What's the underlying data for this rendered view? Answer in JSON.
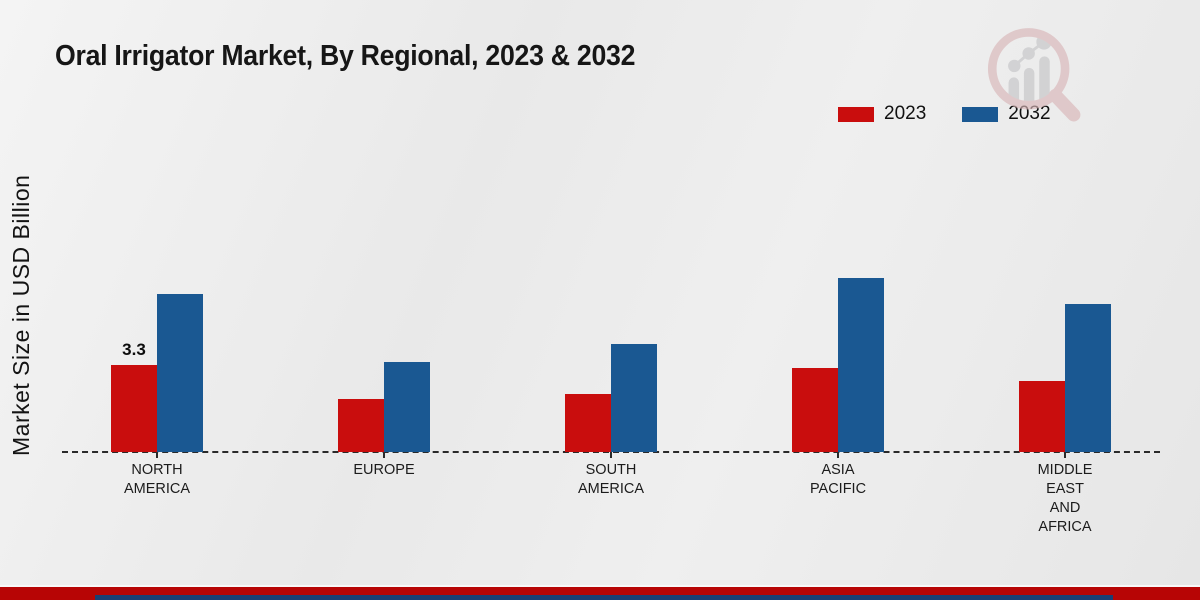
{
  "page": {
    "title": "Oral Irrigator Market, By Regional, 2023 & 2032",
    "y_axis_label": "Market Size in USD Billion"
  },
  "legend": {
    "items": [
      {
        "label": "2023",
        "color": "#c90d0d"
      },
      {
        "label": "2032",
        "color": "#1a5892"
      }
    ]
  },
  "colors": {
    "series_2023": "#c90d0d",
    "series_2032": "#1a5892",
    "footer_red_strip": "#b70505",
    "footer_navy_strip": "#1b3f73",
    "text": "#161616",
    "watermark_ring": "#d9b6b8",
    "watermark_gray": "#c5c5c7"
  },
  "watermark": {
    "name": "magnifier-bar-chart-logo"
  },
  "chart_data": {
    "type": "bar",
    "title": "Oral Irrigator Market, By Regional, 2023 & 2032",
    "ylabel": "Market Size in USD Billion",
    "unit": "USD Billion",
    "categories": [
      "NORTH AMERICA",
      "EUROPE",
      "SOUTH AMERICA",
      "ASIA PACIFIC",
      "MIDDLE EAST AND AFRICA"
    ],
    "category_label_lines": [
      [
        "NORTH",
        "AMERICA"
      ],
      [
        "EUROPE"
      ],
      [
        "SOUTH",
        "AMERICA"
      ],
      [
        "ASIA",
        "PACIFIC"
      ],
      [
        "MIDDLE",
        "EAST",
        "AND",
        "AFRICA"
      ]
    ],
    "series": [
      {
        "name": "2023",
        "color": "#c90d0d",
        "values": [
          3.3,
          2.0,
          2.2,
          3.2,
          2.7
        ],
        "data_labels": [
          "3.3",
          "",
          "",
          "",
          ""
        ]
      },
      {
        "name": "2032",
        "color": "#1a5892",
        "values": [
          6.0,
          3.4,
          4.1,
          6.6,
          5.6
        ],
        "data_labels": [
          "",
          "",
          "",
          "",
          ""
        ]
      }
    ],
    "ylim": [
      0,
      7
    ],
    "grid": false,
    "axis_style": "dashed-baseline-only",
    "legend_position": "top-right"
  }
}
